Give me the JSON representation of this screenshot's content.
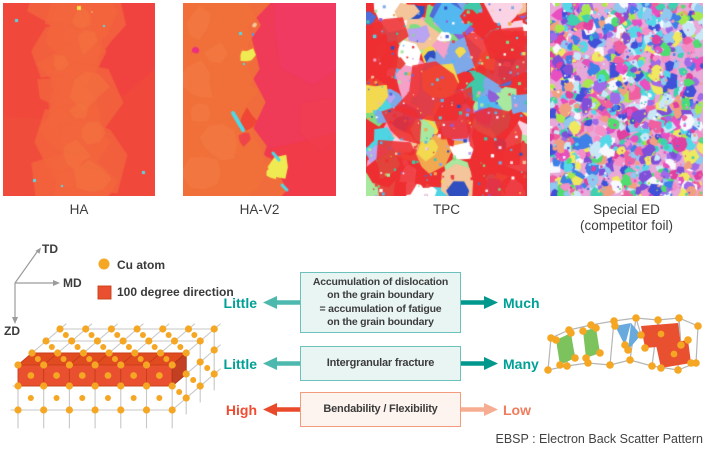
{
  "micrographs": {
    "items": [
      {
        "label": "HA",
        "texture": "smooth",
        "base": "#f1483c",
        "band": "#f2653d",
        "accents": [
          "#52dbe8",
          "#f5e34b"
        ]
      },
      {
        "label": "HA-V2",
        "texture": "two-tone",
        "base": "#ef3a58",
        "left": "#f1703a",
        "accents": [
          "#f0ea52",
          "#4fd8e8",
          "#ee2f7e"
        ]
      },
      {
        "label": "TPC",
        "texture": "grains-large",
        "base": "#ee2f31",
        "palette": [
          "#4f6cd8",
          "#7fa8e8",
          "#4fd4e4",
          "#3fc9a8",
          "#7fdd7f",
          "#a8e89f",
          "#f2d94f",
          "#f2a84f",
          "#f4c49a",
          "#f4a0c8",
          "#fad4e4",
          "#8f5fd8",
          "#b8a4f0",
          "#ffffff",
          "#54b8f0",
          "#2f4fc0",
          "#ee2f31",
          "#ee2f31",
          "#e8463f"
        ]
      },
      {
        "label": "Special ED",
        "sublabel": "(competitor foil)",
        "texture": "grains-fine",
        "base": "#e8a8d8",
        "palette": [
          "#e84fc0",
          "#f48fc8",
          "#f060a0",
          "#9f6ae8",
          "#7f4fd8",
          "#4050d8",
          "#3f7fe8",
          "#54d8e8",
          "#8fc8f0",
          "#4fdd6f",
          "#a8e84f",
          "#f0e85f",
          "#f0a080",
          "#f8f8ff",
          "#3fd0b0",
          "#e040a0",
          "#c8e8f8"
        ]
      }
    ]
  },
  "axes": {
    "td": "TD",
    "md": "MD",
    "zd": "ZD"
  },
  "legend": {
    "cu_atom": "Cu atom",
    "direction": "100 degree direction"
  },
  "comparison": {
    "rows": [
      {
        "left": "Little",
        "center": "Accumulation of dislocation\non the grain boundary\n= accumulation of fatigue\non the grain boundary",
        "right": "Much",
        "theme": "teal"
      },
      {
        "left": "Little",
        "center": "Intergranular fracture",
        "right": "Many",
        "theme": "teal"
      },
      {
        "left": "High",
        "center": "Bendability / Flexibility",
        "right": "Low",
        "theme": "warm"
      }
    ]
  },
  "footnote": "EBSP : Electron Back Scatter Pattern",
  "colors": {
    "teal_dark": "#00978d",
    "teal_mid": "#4db8ad",
    "teal_text": "#00a096",
    "teal_box_bg": "#e9f5f3",
    "teal_box_border": "#6cc2ba",
    "warm_box_bg": "#fdf4f0",
    "warm_box_border": "#f29b7d",
    "red_arrow": "#e84a2b",
    "salmon_arrow": "#f6ad92",
    "red_text": "#f04c31",
    "low_text": "#ef7c5c",
    "cu_atom": "#f5a623",
    "cube_red": "#e8502f",
    "grid_gray": "#c7c7c7",
    "cluster_green": "#7cc35e",
    "cluster_blue": "#68aadd",
    "cluster_red": "#e8502f",
    "box_text": "#3c3c3c"
  }
}
